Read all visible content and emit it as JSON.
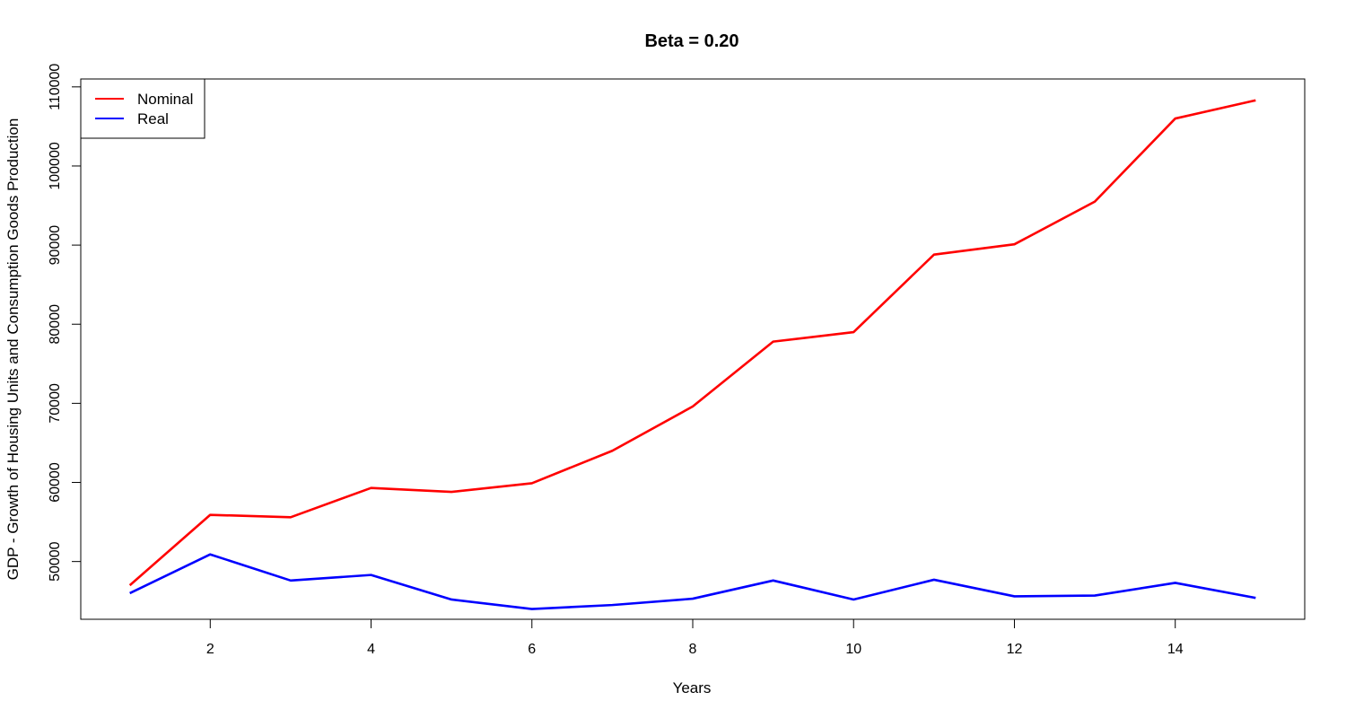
{
  "chart_data": {
    "type": "line",
    "title": "Beta = 0.20",
    "xlabel": "Years",
    "ylabel": "GDP - Growth of Housing Units and Consumption Goods Production",
    "x": [
      1,
      2,
      3,
      4,
      5,
      6,
      7,
      8,
      9,
      10,
      11,
      12,
      13,
      14,
      15
    ],
    "xlim": [
      0.39,
      15.61
    ],
    "ylim": [
      42700,
      111000
    ],
    "xticks": [
      2,
      4,
      6,
      8,
      10,
      12,
      14
    ],
    "yticks": [
      50000,
      60000,
      70000,
      80000,
      90000,
      100000,
      110000
    ],
    "legend_position": "top-left",
    "grid": false,
    "series": [
      {
        "name": "Nominal",
        "color": "#ff0000",
        "values": [
          47000,
          55900,
          55600,
          59300,
          58800,
          59900,
          64000,
          69600,
          77800,
          79000,
          88800,
          90100,
          95500,
          106000,
          108300
        ]
      },
      {
        "name": "Real",
        "color": "#0000ff",
        "values": [
          46000,
          50900,
          47600,
          48300,
          45200,
          44000,
          44500,
          45300,
          47600,
          45200,
          47700,
          45600,
          45700,
          47300,
          45400
        ]
      }
    ]
  }
}
